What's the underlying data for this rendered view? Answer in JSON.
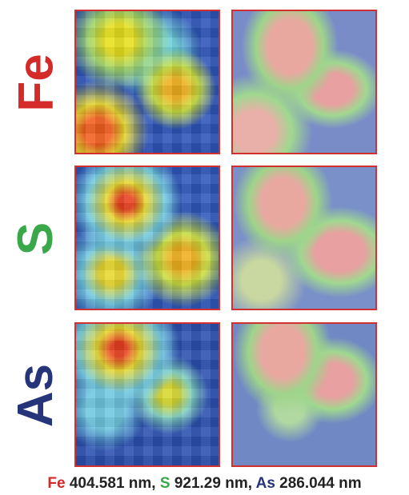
{
  "rows": [
    {
      "element": "Fe",
      "color": "#d42a2a"
    },
    {
      "element": "S",
      "color": "#3aa84a"
    },
    {
      "element": "As",
      "color": "#26347a"
    }
  ],
  "caption": {
    "parts": [
      {
        "element": "Fe",
        "wavelength": "404.581 nm",
        "separator": ","
      },
      {
        "element": "S",
        "wavelength": "921.29 nm",
        "separator": ","
      },
      {
        "element": "As",
        "wavelength": "286.044 nm"
      }
    ]
  }
}
